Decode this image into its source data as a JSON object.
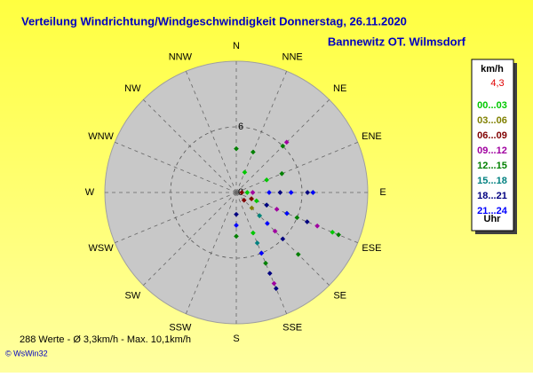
{
  "chart_data": {
    "type": "polar-scatter",
    "title": "Verteilung Windrichtung/Windgeschwindigkeit  Donnerstag, 26.11.2020",
    "subtitle": "Bannewitz OT. Wilmsdorf",
    "footer": "288 Werte   -   Ø 3,3km/h  -  Max. 10,1km/h",
    "credit": "© WsWin32",
    "categories": [
      "N",
      "NNE",
      "NE",
      "ENE",
      "E",
      "ESE",
      "SE",
      "SSE",
      "S",
      "SSW",
      "SW",
      "WSW",
      "W",
      "WNW",
      "NW",
      "NNW"
    ],
    "rlim": [
      0,
      12
    ],
    "rticks": [
      0,
      6
    ],
    "legend_title": "km/h",
    "legend_mean": "4,3",
    "legend_footer": "Uhr",
    "series": [
      {
        "name": "00...03",
        "color": "#00c800",
        "dir": [
          112.5,
          112.5,
          112.5,
          135,
          157.5,
          157.5,
          90,
          67.5,
          22.5
        ],
        "speed": [
          2,
          5,
          9.5,
          3,
          4,
          6,
          1,
          3,
          2
        ]
      },
      {
        "name": "03...06",
        "color": "#808000",
        "dir": [
          112.5,
          135
        ],
        "speed": [
          1.5,
          2
        ]
      },
      {
        "name": "06...09",
        "color": "#800000",
        "dir": [
          135,
          112.5,
          90
        ],
        "speed": [
          1,
          1.5,
          0.5
        ]
      },
      {
        "name": "09...12",
        "color": "#a000a0",
        "dir": [
          112.5,
          112.5,
          135,
          157.5,
          157.5,
          45,
          90
        ],
        "speed": [
          4,
          8,
          5,
          6,
          9,
          6.5,
          1.5
        ]
      },
      {
        "name": "12...15",
        "color": "#008000",
        "dir": [
          112.5,
          112.5,
          135,
          157.5,
          67.5,
          45,
          22.5,
          0,
          90,
          180
        ],
        "speed": [
          6,
          10.1,
          8,
          7,
          4.5,
          6,
          4,
          4,
          7,
          4
        ]
      },
      {
        "name": "15...18",
        "color": "#008080",
        "dir": [
          135,
          157.5,
          112.5
        ],
        "speed": [
          3,
          5,
          3
        ]
      },
      {
        "name": "18...21",
        "color": "#000080",
        "dir": [
          112.5,
          112.5,
          135,
          157.5,
          157.5,
          90,
          90,
          180
        ],
        "speed": [
          3,
          7,
          6,
          9.5,
          8,
          4,
          6.5,
          2
        ]
      },
      {
        "name": "21...24",
        "color": "#0000ff",
        "dir": [
          90,
          90,
          112.5,
          135,
          157.5,
          90,
          180
        ],
        "speed": [
          5,
          7,
          5,
          4,
          6,
          3,
          3
        ]
      }
    ]
  }
}
